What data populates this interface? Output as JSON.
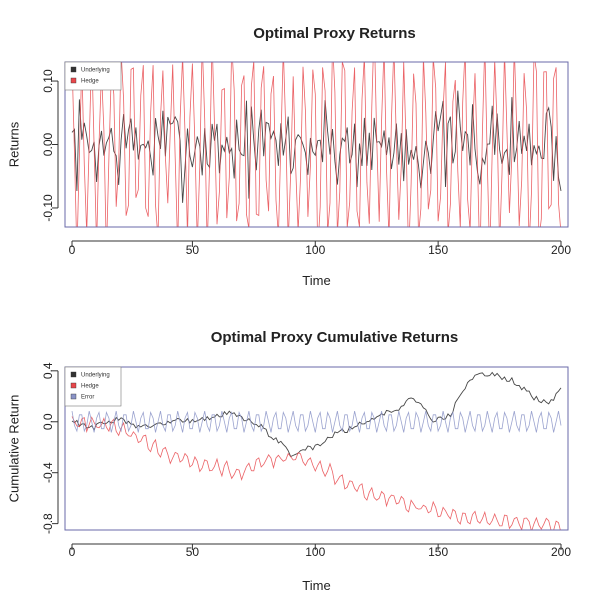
{
  "colors": {
    "underlying": "#333333",
    "hedge": "#e8474b",
    "error": "#8a93c7",
    "axis": "#333333",
    "frame": "#6a6aa8"
  },
  "chart_data": [
    {
      "type": "line",
      "title": "Optimal Proxy Returns",
      "xlabel": "Time",
      "ylabel": "Returns",
      "xlim": [
        1,
        200
      ],
      "ylim": [
        -0.13,
        0.13
      ],
      "xticks": [
        0,
        50,
        100,
        150,
        200
      ],
      "xtick_labels": [
        "0",
        "50",
        "100",
        "150",
        "200"
      ],
      "yticks": [
        -0.1,
        0,
        0.1
      ],
      "ytick_labels": [
        "-0.10",
        "0.00",
        "0.10"
      ],
      "grid": false,
      "legend_position": "top-left",
      "series": [
        {
          "name": "Underlying",
          "color": "#333333",
          "generator": "returns",
          "amplitude": 0.045,
          "seed": 7
        },
        {
          "name": "Hedge",
          "color": "#e8474b",
          "generator": "oscillating_returns",
          "amplitude": 0.16,
          "period": 4.1,
          "seed": 11
        }
      ]
    },
    {
      "type": "line",
      "title": "Optimal Proxy Cumulative Returns",
      "xlabel": "Time",
      "ylabel": "Cumulative Return",
      "xlim": [
        1,
        200
      ],
      "ylim": [
        -0.85,
        0.43
      ],
      "xticks": [
        0,
        50,
        100,
        150,
        200
      ],
      "xtick_labels": [
        "0",
        "50",
        "100",
        "150",
        "200"
      ],
      "yticks": [
        -0.8,
        -0.4,
        0.0,
        0.4
      ],
      "ytick_labels": [
        "-0.8",
        "-0.4",
        "0.0",
        "0.4"
      ],
      "grid": false,
      "legend_position": "top-left",
      "series": [
        {
          "name": "Underlying",
          "color": "#333333",
          "anchors": [
            [
              1,
              0.0
            ],
            [
              10,
              -0.04
            ],
            [
              20,
              0.02
            ],
            [
              30,
              -0.05
            ],
            [
              40,
              0.0
            ],
            [
              55,
              0.02
            ],
            [
              65,
              0.08
            ],
            [
              75,
              0.0
            ],
            [
              85,
              -0.15
            ],
            [
              90,
              -0.25
            ],
            [
              100,
              -0.2
            ],
            [
              108,
              -0.1
            ],
            [
              115,
              -0.05
            ],
            [
              125,
              0.05
            ],
            [
              135,
              0.12
            ],
            [
              140,
              0.2
            ],
            [
              148,
              0.0
            ],
            [
              155,
              0.05
            ],
            [
              160,
              0.25
            ],
            [
              165,
              0.35
            ],
            [
              172,
              0.38
            ],
            [
              180,
              0.33
            ],
            [
              188,
              0.2
            ],
            [
              195,
              0.15
            ],
            [
              200,
              0.25
            ]
          ]
        },
        {
          "name": "Hedge",
          "color": "#e8474b",
          "anchors": [
            [
              1,
              0.0
            ],
            [
              10,
              -0.02
            ],
            [
              20,
              -0.05
            ],
            [
              30,
              -0.15
            ],
            [
              40,
              -0.25
            ],
            [
              50,
              -0.33
            ],
            [
              60,
              -0.35
            ],
            [
              70,
              -0.4
            ],
            [
              80,
              -0.3
            ],
            [
              90,
              -0.28
            ],
            [
              100,
              -0.32
            ],
            [
              110,
              -0.45
            ],
            [
              120,
              -0.55
            ],
            [
              130,
              -0.6
            ],
            [
              140,
              -0.66
            ],
            [
              150,
              -0.7
            ],
            [
              160,
              -0.75
            ],
            [
              170,
              -0.78
            ],
            [
              180,
              -0.79
            ],
            [
              190,
              -0.8
            ],
            [
              200,
              -0.83
            ]
          ]
        },
        {
          "name": "Error",
          "color": "#8a93c7",
          "generator": "sine",
          "amplitude": 0.085,
          "period": 3.6,
          "center": 0.0
        }
      ]
    }
  ]
}
